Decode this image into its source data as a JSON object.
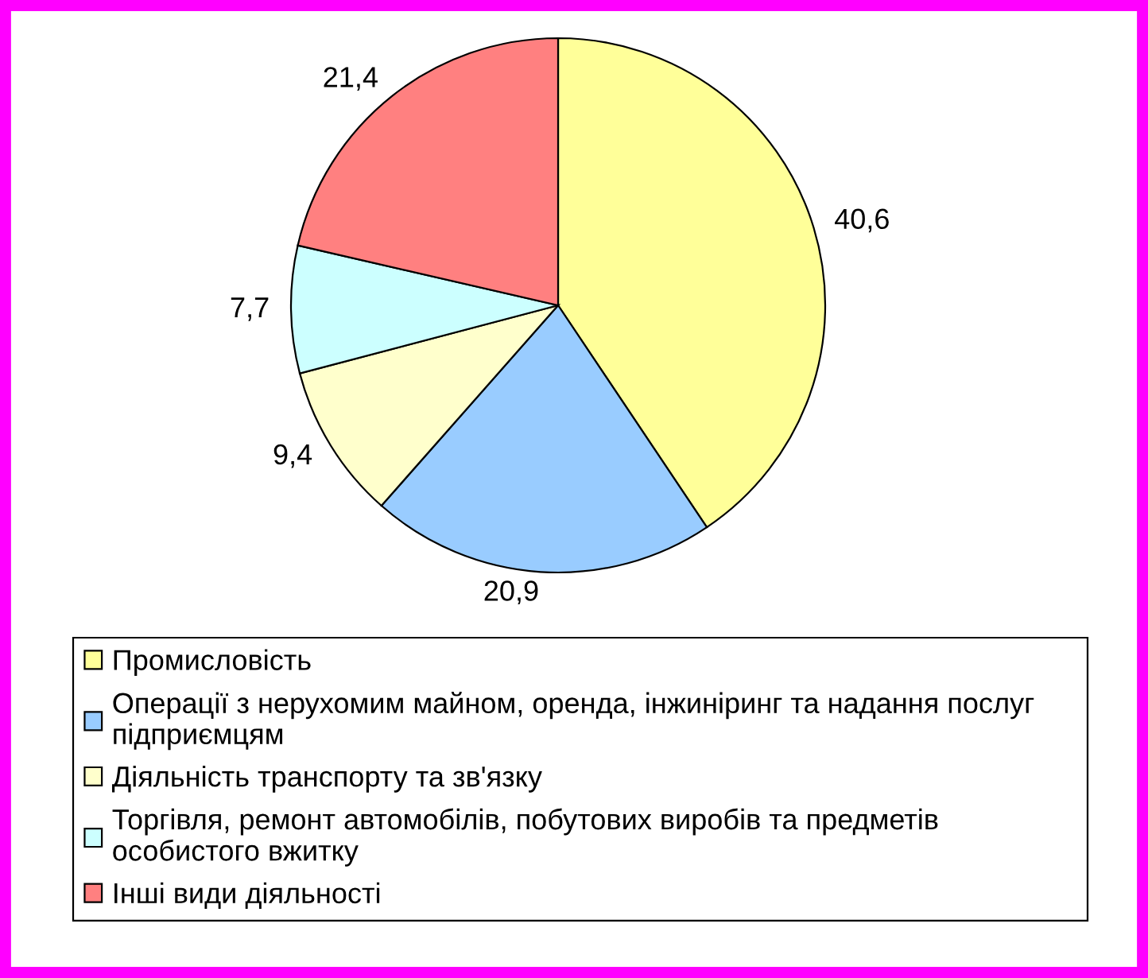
{
  "chart_data": {
    "type": "pie",
    "categories": [
      "Промисловість",
      "Операції з нерухомим майном, оренда, інжиніринг та надання послуг\nпідприємцям",
      "Діяльність транспорту та зв'язку",
      "Торгівля, ремонт автомобілів, побутових виробів та предметів\nособистого вжитку",
      "Інші види діяльності"
    ],
    "values": [
      40.6,
      20.9,
      9.4,
      7.7,
      21.4
    ],
    "colors": [
      "#ffff99",
      "#99ccff",
      "#ffffcc",
      "#ccffff",
      "#ff8080"
    ],
    "value_labels": [
      "40,6",
      "20,9",
      "9,4",
      "7,7",
      "21,4"
    ],
    "legend": "bottom"
  }
}
